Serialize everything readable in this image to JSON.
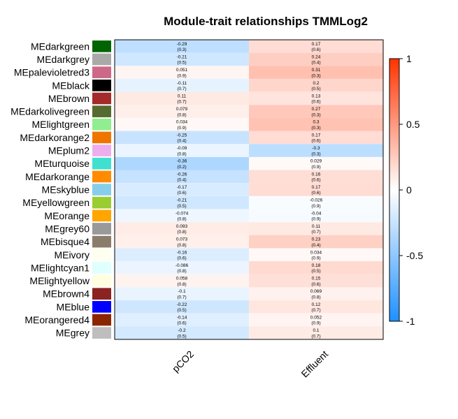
{
  "chart_data": {
    "type": "heatmap",
    "title": "Module-trait relationships TMMLog2",
    "columns": [
      "pCO2",
      "Effluent"
    ],
    "rows": [
      {
        "module": "MEdarkgreen",
        "color": "#006400",
        "cells": [
          {
            "r": -0.29,
            "p": "(0.3)"
          },
          {
            "r": 0.17,
            "p": "(0.6)"
          }
        ]
      },
      {
        "module": "MEdarkgrey",
        "color": "#A9A9A9",
        "cells": [
          {
            "r": -0.21,
            "p": "(0.5)"
          },
          {
            "r": 0.24,
            "p": "(0.4)"
          }
        ]
      },
      {
        "module": "MEpalevioletred3",
        "color": "#CD6889",
        "cells": [
          {
            "r": 0.051,
            "p": "(0.9)"
          },
          {
            "r": 0.31,
            "p": "(0.3)"
          }
        ]
      },
      {
        "module": "MEblack",
        "color": "#000000",
        "cells": [
          {
            "r": -0.11,
            "p": "(0.7)"
          },
          {
            "r": 0.2,
            "p": "(0.5)"
          }
        ]
      },
      {
        "module": "MEbrown",
        "color": "#A52A2A",
        "cells": [
          {
            "r": 0.11,
            "p": "(0.7)"
          },
          {
            "r": 0.13,
            "p": "(0.6)"
          }
        ]
      },
      {
        "module": "MEdarkolivegreen",
        "color": "#556B2F",
        "cells": [
          {
            "r": 0.079,
            "p": "(0.8)"
          },
          {
            "r": 0.27,
            "p": "(0.3)"
          }
        ]
      },
      {
        "module": "MElightgreen",
        "color": "#90EE90",
        "cells": [
          {
            "r": 0.034,
            "p": "(0.9)"
          },
          {
            "r": 0.3,
            "p": "(0.3)"
          }
        ]
      },
      {
        "module": "MEdarkorange2",
        "color": "#EE7600",
        "cells": [
          {
            "r": -0.25,
            "p": "(0.4)"
          },
          {
            "r": 0.17,
            "p": "(0.6)"
          }
        ]
      },
      {
        "module": "MEplum2",
        "color": "#EEAEEE",
        "cells": [
          {
            "r": -0.09,
            "p": "(0.8)"
          },
          {
            "r": -0.3,
            "p": "(0.3)"
          }
        ]
      },
      {
        "module": "MEturquoise",
        "color": "#40E0D0",
        "cells": [
          {
            "r": -0.36,
            "p": "(0.2)"
          },
          {
            "r": 0.029,
            "p": "(0.9)"
          }
        ]
      },
      {
        "module": "MEdarkorange",
        "color": "#FF8C00",
        "cells": [
          {
            "r": -0.26,
            "p": "(0.4)"
          },
          {
            "r": 0.16,
            "p": "(0.6)"
          }
        ]
      },
      {
        "module": "MEskyblue",
        "color": "#87CEEB",
        "cells": [
          {
            "r": -0.17,
            "p": "(0.6)"
          },
          {
            "r": 0.17,
            "p": "(0.6)"
          }
        ]
      },
      {
        "module": "MEyellowgreen",
        "color": "#9ACD32",
        "cells": [
          {
            "r": -0.21,
            "p": "(0.5)"
          },
          {
            "r": -0.026,
            "p": "(0.9)"
          }
        ]
      },
      {
        "module": "MEorange",
        "color": "#FFA500",
        "cells": [
          {
            "r": -0.074,
            "p": "(0.8)"
          },
          {
            "r": -0.04,
            "p": "(0.9)"
          }
        ]
      },
      {
        "module": "MEgrey60",
        "color": "#999999",
        "cells": [
          {
            "r": 0.093,
            "p": "(0.8)"
          },
          {
            "r": 0.11,
            "p": "(0.7)"
          }
        ]
      },
      {
        "module": "MEbisque4",
        "color": "#8B7D6B",
        "cells": [
          {
            "r": 0.073,
            "p": "(0.8)"
          },
          {
            "r": 0.23,
            "p": "(0.4)"
          }
        ]
      },
      {
        "module": "MEivory",
        "color": "#FFFFF0",
        "cells": [
          {
            "r": -0.16,
            "p": "(0.6)"
          },
          {
            "r": 0.034,
            "p": "(0.9)"
          }
        ]
      },
      {
        "module": "MElightcyan1",
        "color": "#E0FFFF",
        "cells": [
          {
            "r": -0.086,
            "p": "(0.8)"
          },
          {
            "r": 0.18,
            "p": "(0.5)"
          }
        ]
      },
      {
        "module": "MElightyellow",
        "color": "#FFFFE0",
        "cells": [
          {
            "r": 0.058,
            "p": "(0.8)"
          },
          {
            "r": 0.15,
            "p": "(0.6)"
          }
        ]
      },
      {
        "module": "MEbrown4",
        "color": "#8B2323",
        "cells": [
          {
            "r": -0.1,
            "p": "(0.7)"
          },
          {
            "r": 0.069,
            "p": "(0.8)"
          }
        ]
      },
      {
        "module": "MEblue",
        "color": "#0000FF",
        "cells": [
          {
            "r": -0.22,
            "p": "(0.5)"
          },
          {
            "r": 0.12,
            "p": "(0.7)"
          }
        ]
      },
      {
        "module": "MEorangered4",
        "color": "#8B2500",
        "cells": [
          {
            "r": -0.14,
            "p": "(0.6)"
          },
          {
            "r": 0.052,
            "p": "(0.9)"
          }
        ]
      },
      {
        "module": "MEgrey",
        "color": "#BEBEBE",
        "cells": [
          {
            "r": -0.2,
            "p": "(0.5)"
          },
          {
            "r": 0.1,
            "p": "(0.7)"
          }
        ]
      }
    ],
    "colorbar": {
      "min": -1,
      "max": 1,
      "ticks": [
        "1",
        "0.5",
        "0",
        "-0.5",
        "-1"
      ],
      "low_color": "#1E90FF",
      "mid_color": "#FFFFFF",
      "high_color": "#FF3300"
    }
  }
}
